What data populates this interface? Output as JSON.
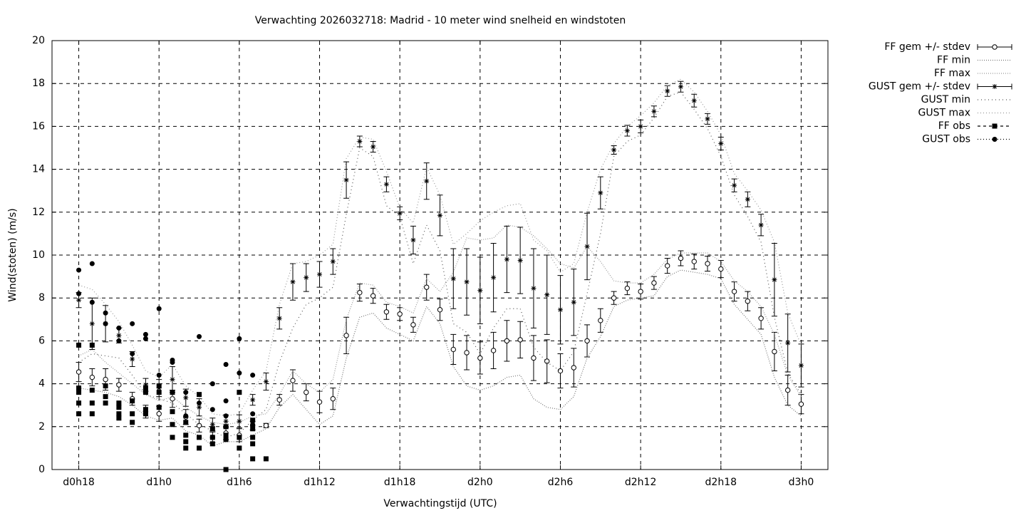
{
  "chart_data": {
    "type": "errorbar",
    "title": "Verwachting 2026032718: Madrid - 10 meter wind snelheid en windstoten",
    "x_label": "Verwachtingstijd (UTC)",
    "y_label": "Wind(stoten) (m/s)",
    "xlim": [
      16,
      74
    ],
    "ylim": [
      0,
      20
    ],
    "xticks": [
      {
        "value": 18,
        "label": "d0h18"
      },
      {
        "value": 24,
        "label": "d1h0"
      },
      {
        "value": 30,
        "label": "d1h6"
      },
      {
        "value": 36,
        "label": "d1h12"
      },
      {
        "value": 42,
        "label": "d1h18"
      },
      {
        "value": 48,
        "label": "d2h0"
      },
      {
        "value": 54,
        "label": "d2h6"
      },
      {
        "value": 60,
        "label": "d2h12"
      },
      {
        "value": 66,
        "label": "d2h18"
      },
      {
        "value": 72,
        "label": "d3h0"
      }
    ],
    "yticks": [
      0,
      2,
      4,
      6,
      8,
      10,
      12,
      14,
      16,
      18,
      20
    ],
    "grid": true,
    "legend": "outside-right",
    "x": [
      18,
      19,
      20,
      21,
      22,
      23,
      24,
      25,
      26,
      27,
      28,
      29,
      30,
      31,
      32,
      33,
      34,
      35,
      36,
      37,
      38,
      39,
      40,
      41,
      42,
      43,
      44,
      45,
      46,
      47,
      48,
      49,
      50,
      51,
      52,
      53,
      54,
      55,
      56,
      57,
      58,
      59,
      60,
      61,
      62,
      63,
      64,
      65,
      66,
      67,
      68,
      69,
      70,
      71,
      72
    ],
    "series": [
      {
        "name": "FF gem +/- stdev",
        "marker": "circle",
        "color": "#000000",
        "values": [
          4.55,
          4.3,
          4.2,
          3.95,
          3.3,
          2.7,
          2.6,
          3.3,
          2.45,
          2.05,
          1.5,
          1.7,
          1.6,
          2.05,
          2.05,
          3.25,
          4.15,
          3.6,
          3.15,
          3.3,
          6.25,
          8.25,
          8.1,
          7.35,
          7.25,
          6.75,
          8.5,
          7.45,
          5.6,
          5.45,
          5.2,
          5.55,
          6.0,
          6.05,
          5.2,
          5.05,
          4.6,
          4.75,
          6.0,
          6.95,
          8.0,
          8.45,
          8.3,
          8.7,
          9.5,
          9.85,
          9.7,
          9.6,
          9.35,
          8.3,
          7.85,
          7.05,
          5.5,
          3.7,
          3.05
        ],
        "errors": [
          0.45,
          0.4,
          0.5,
          0.3,
          0.3,
          0.3,
          0.35,
          0.4,
          0.35,
          0.3,
          0.25,
          0.3,
          0.3,
          0.2,
          0.1,
          0.25,
          0.5,
          0.4,
          0.5,
          0.5,
          0.85,
          0.4,
          0.35,
          0.35,
          0.3,
          0.35,
          0.6,
          0.5,
          0.7,
          0.8,
          0.75,
          0.85,
          0.95,
          0.85,
          1.05,
          1.0,
          0.8,
          0.9,
          0.75,
          0.55,
          0.3,
          0.3,
          0.35,
          0.3,
          0.35,
          0.35,
          0.35,
          0.35,
          0.4,
          0.45,
          0.45,
          0.5,
          0.9,
          0.7,
          0.45
        ]
      },
      {
        "name": "FF min",
        "marker": "line",
        "color": "#777777",
        "dash": "1,2",
        "values": [
          3.8,
          3.7,
          3.6,
          3.4,
          3.0,
          2.5,
          2.3,
          2.4,
          1.8,
          1.6,
          1.1,
          1.3,
          1.3,
          1.6,
          1.9,
          2.9,
          3.5,
          2.8,
          2.1,
          2.5,
          5.2,
          7.1,
          7.3,
          6.6,
          6.3,
          6.0,
          7.6,
          6.8,
          4.8,
          3.9,
          3.7,
          3.9,
          4.3,
          4.4,
          3.3,
          2.9,
          2.8,
          3.4,
          5.2,
          6.2,
          7.6,
          7.9,
          8.0,
          8.1,
          9.0,
          9.3,
          9.2,
          9.1,
          8.9,
          7.7,
          7.0,
          6.3,
          4.3,
          3.0,
          2.5
        ]
      },
      {
        "name": "FF max",
        "marker": "line",
        "color": "#999999",
        "dash": "1,2",
        "values": [
          5.3,
          5.6,
          5.0,
          4.5,
          4.0,
          3.5,
          3.2,
          3.4,
          2.9,
          2.5,
          2.2,
          2.1,
          2.2,
          2.5,
          2.6,
          3.5,
          4.6,
          4.0,
          3.6,
          4.2,
          7.0,
          8.7,
          8.6,
          7.8,
          7.6,
          7.3,
          8.9,
          8.3,
          9.2,
          10.8,
          10.7,
          10.8,
          11.4,
          11.3,
          10.9,
          10.3,
          9.6,
          9.4,
          10.4,
          9.7,
          8.8,
          8.7,
          8.7,
          9.1,
          9.8,
          10.1,
          10.1,
          10.1,
          9.7,
          8.8,
          8.3,
          7.6,
          6.3,
          4.4,
          3.4
        ]
      },
      {
        "name": "GUST gem +/- stdev",
        "marker": "asterisk",
        "color": "#000000",
        "values": [
          7.9,
          6.8,
          6.8,
          6.25,
          5.15,
          3.95,
          3.8,
          4.2,
          3.35,
          2.9,
          2.1,
          2.25,
          2.25,
          3.25,
          4.1,
          7.05,
          8.75,
          8.95,
          9.1,
          9.7,
          13.5,
          15.3,
          15.05,
          13.3,
          11.95,
          10.7,
          13.45,
          11.85,
          8.9,
          8.75,
          8.35,
          8.95,
          9.8,
          9.75,
          8.45,
          8.15,
          7.45,
          7.8,
          10.4,
          12.9,
          14.9,
          15.8,
          16.0,
          16.7,
          17.65,
          17.85,
          17.2,
          16.35,
          15.2,
          13.25,
          12.6,
          11.4,
          8.85,
          5.9,
          4.85
        ],
        "errors": [
          0.35,
          1.2,
          0.85,
          0.35,
          0.35,
          0.3,
          0.4,
          0.6,
          0.4,
          0.4,
          0.3,
          0.3,
          0.3,
          0.25,
          0.4,
          0.5,
          0.85,
          0.65,
          0.6,
          0.6,
          0.85,
          0.25,
          0.25,
          0.35,
          0.3,
          0.65,
          0.85,
          0.95,
          1.4,
          1.55,
          1.55,
          1.6,
          1.55,
          1.55,
          1.85,
          1.85,
          1.6,
          1.55,
          1.55,
          0.75,
          0.2,
          0.25,
          0.3,
          0.25,
          0.25,
          0.25,
          0.3,
          0.25,
          0.3,
          0.3,
          0.35,
          0.5,
          1.7,
          1.35,
          1.0
        ]
      },
      {
        "name": "GUST min",
        "marker": "line",
        "color": "#555555",
        "dash": "1,4",
        "values": [
          5.0,
          5.4,
          5.3,
          5.2,
          4.4,
          3.5,
          3.3,
          3.1,
          2.6,
          2.1,
          1.8,
          1.5,
          1.7,
          2.3,
          2.8,
          5.0,
          6.6,
          7.7,
          8.0,
          8.5,
          11.9,
          15.0,
          14.6,
          12.3,
          11.8,
          9.6,
          11.4,
          10.2,
          6.8,
          6.4,
          5.4,
          6.6,
          7.5,
          7.5,
          5.7,
          5.0,
          4.6,
          5.5,
          8.2,
          11.0,
          14.6,
          15.3,
          15.6,
          16.4,
          17.4,
          17.6,
          16.8,
          15.9,
          14.6,
          12.8,
          11.8,
          10.6,
          7.1,
          4.5,
          3.5
        ]
      },
      {
        "name": "GUST max",
        "marker": "line",
        "color": "#999999",
        "dash": "1,3",
        "values": [
          8.6,
          8.4,
          7.7,
          6.9,
          5.8,
          4.6,
          4.3,
          4.9,
          3.9,
          3.4,
          2.6,
          2.5,
          2.6,
          3.7,
          4.6,
          7.7,
          9.6,
          9.7,
          10.0,
          10.5,
          14.5,
          15.5,
          15.4,
          13.9,
          12.2,
          11.5,
          14.1,
          12.8,
          10.5,
          11.0,
          11.6,
          12.0,
          12.3,
          12.4,
          10.7,
          10.2,
          9.2,
          9.6,
          12.0,
          14.0,
          15.2,
          16.0,
          16.5,
          17.1,
          17.9,
          18.2,
          17.6,
          16.7,
          15.6,
          13.8,
          13.0,
          12.1,
          10.6,
          7.3,
          5.8
        ]
      },
      {
        "name": "FF obs",
        "marker": "square",
        "color": "#000000",
        "dash": "4,4",
        "x": [
          18,
          18,
          18,
          18,
          18,
          19,
          19,
          19,
          19,
          20,
          20,
          20,
          21,
          21,
          21,
          21,
          22,
          22,
          22,
          23,
          23,
          23,
          23,
          24,
          24,
          24,
          25,
          25,
          25,
          25,
          26,
          26,
          26,
          26,
          27,
          27,
          27,
          28,
          28,
          28,
          29,
          29,
          29,
          29,
          30,
          30,
          30,
          31,
          31,
          31,
          31,
          31,
          32
        ],
        "values": [
          5.8,
          3.8,
          3.6,
          3.1,
          2.6,
          5.8,
          3.7,
          3.1,
          2.6,
          3.9,
          3.4,
          3.1,
          3.1,
          2.9,
          2.6,
          2.4,
          3.2,
          2.6,
          2.2,
          3.8,
          3.6,
          2.8,
          2.6,
          3.9,
          3.6,
          2.9,
          3.6,
          2.7,
          2.1,
          1.5,
          2.2,
          1.6,
          1.3,
          1.0,
          3.5,
          1.5,
          1.0,
          1.9,
          1.5,
          1.2,
          2.0,
          1.6,
          1.4,
          0.0,
          3.6,
          1.5,
          1.0,
          2.3,
          1.9,
          1.5,
          1.2,
          0.5,
          0.5
        ]
      },
      {
        "name": "GUST obs",
        "marker": "dot",
        "color": "#000000",
        "dash": "1,3",
        "x": [
          18,
          18,
          19,
          19,
          20,
          20,
          21,
          21,
          22,
          22,
          23,
          23,
          24,
          24,
          25,
          25,
          25,
          26,
          26,
          27,
          27,
          28,
          28,
          29,
          29,
          29,
          30,
          30,
          31,
          31,
          31
        ],
        "values": [
          9.3,
          8.2,
          9.6,
          7.8,
          7.3,
          6.8,
          6.6,
          6.0,
          6.8,
          5.4,
          6.3,
          6.1,
          7.5,
          4.4,
          5.1,
          5.0,
          3.6,
          3.6,
          2.5,
          6.2,
          3.1,
          4.0,
          2.8,
          4.9,
          3.2,
          2.5,
          6.1,
          4.5,
          4.4,
          2.6,
          2.1
        ]
      }
    ]
  }
}
